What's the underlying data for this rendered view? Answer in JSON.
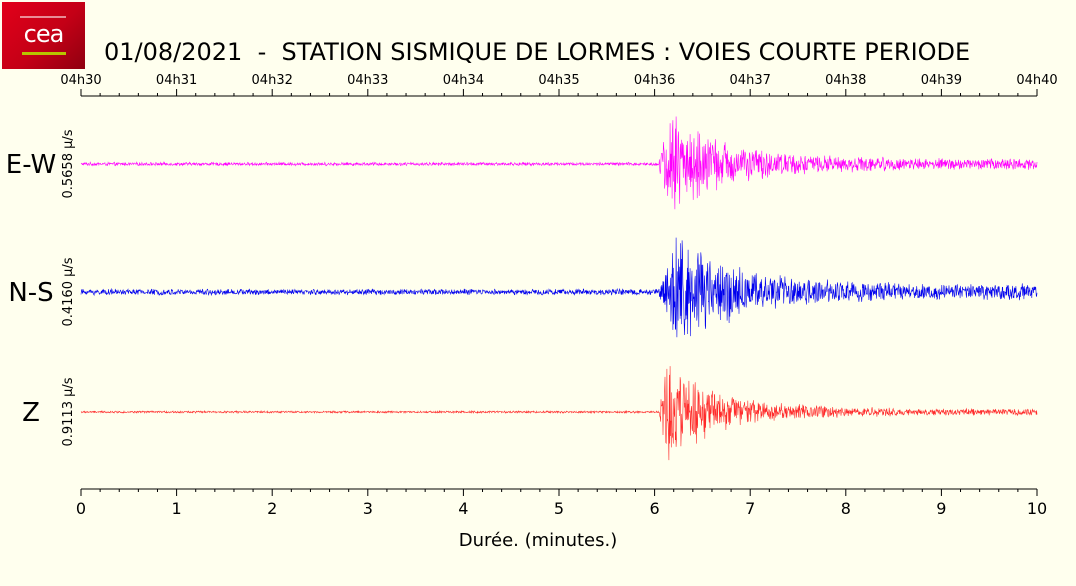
{
  "header": {
    "logo_text": "cea",
    "title": "01/08/2021  -  STATION SISMIQUE DE LORMES : VOIES COURTE PERIODE"
  },
  "chart_data": {
    "type": "line",
    "title": "01/08/2021  -  STATION SISMIQUE DE LORMES : VOIES COURTE PERIODE",
    "xlabel": "Durée.  (minutes.)",
    "xlim": [
      0,
      10
    ],
    "x_ticks": [
      0,
      1,
      2,
      3,
      4,
      5,
      6,
      7,
      8,
      9,
      10
    ],
    "x_tick_labels": [
      "0",
      "1",
      "2",
      "3",
      "4",
      "5",
      "6",
      "7",
      "8",
      "9",
      "10"
    ],
    "time_ticks": [
      "04h30",
      "04h31",
      "04h32",
      "04h33",
      "04h34",
      "04h35",
      "04h36",
      "04h37",
      "04h38",
      "04h39",
      "04h40"
    ],
    "onset_minutes": 6.05,
    "series": [
      {
        "name": "E-W",
        "scale_label": "0.5658 µ/s",
        "color": "#ff00ff",
        "noise": 0.03,
        "peak": 0.95,
        "peak_minutes": 6.15,
        "coda_level": 0.08
      },
      {
        "name": "N-S",
        "scale_label": "0.4160 µ/s",
        "color": "#0000ee",
        "noise": 0.05,
        "peak": 1.0,
        "peak_minutes": 6.25,
        "coda_level": 0.09
      },
      {
        "name": "Z",
        "scale_label": "0.9113 µ/s",
        "color": "#ff2a2a",
        "noise": 0.02,
        "peak": 1.0,
        "peak_minutes": 6.12,
        "coda_level": 0.05
      }
    ]
  }
}
